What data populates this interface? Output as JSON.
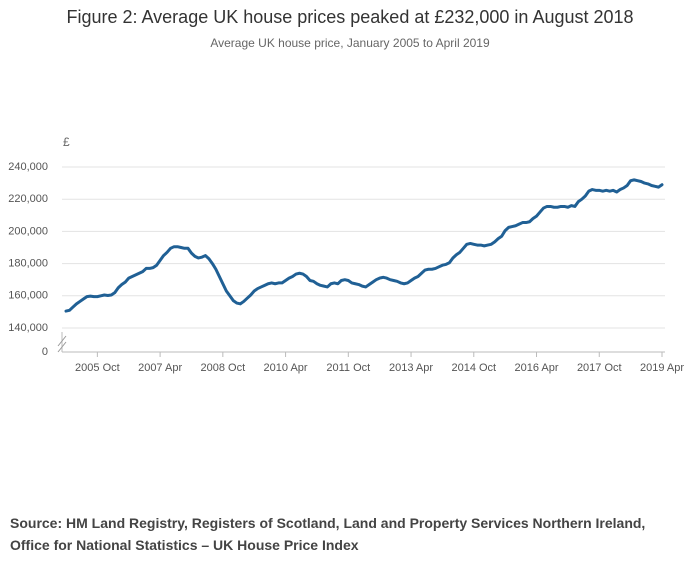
{
  "chart_data": {
    "type": "line",
    "title": "Figure 2: Average UK house prices peaked at £232,000 in August 2018",
    "subtitle": "Average UK house price, January 2005 to April 2019",
    "y_label": "£",
    "source": "Source: HM Land Registry, Registers of Scotland, Land and Property Services Northern Ireland, Office for National Statistics – UK House Price Index",
    "color": "#206095",
    "grid": true,
    "axis_break": true,
    "ylim": [
      140000,
      240000
    ],
    "yticks": [
      0,
      {
        "value": 140000,
        "label": "140,000"
      },
      {
        "value": 160000,
        "label": "160,000"
      },
      {
        "value": 180000,
        "label": "180,000"
      },
      {
        "value": 200000,
        "label": "200,000"
      },
      {
        "value": 220000,
        "label": "220,000"
      },
      {
        "value": 240000,
        "label": "240,000"
      }
    ],
    "xticks": [
      "2005 Oct",
      "2007 Apr",
      "2008 Oct",
      "2010 Apr",
      "2011 Oct",
      "2013 Apr",
      "2014 Oct",
      "2016 Apr",
      "2017 Oct",
      "2019 Apr"
    ],
    "x": [
      "2005 Jan",
      "2005 Feb",
      "2005 Mar",
      "2005 Apr",
      "2005 May",
      "2005 Jun",
      "2005 Jul",
      "2005 Aug",
      "2005 Sep",
      "2005 Oct",
      "2005 Nov",
      "2005 Dec",
      "2006 Jan",
      "2006 Feb",
      "2006 Mar",
      "2006 Apr",
      "2006 May",
      "2006 Jun",
      "2006 Jul",
      "2006 Aug",
      "2006 Sep",
      "2006 Oct",
      "2006 Nov",
      "2006 Dec",
      "2007 Jan",
      "2007 Feb",
      "2007 Mar",
      "2007 Apr",
      "2007 May",
      "2007 Jun",
      "2007 Jul",
      "2007 Aug",
      "2007 Sep",
      "2007 Oct",
      "2007 Nov",
      "2007 Dec",
      "2008 Jan",
      "2008 Feb",
      "2008 Mar",
      "2008 Apr",
      "2008 May",
      "2008 Jun",
      "2008 Jul",
      "2008 Aug",
      "2008 Sep",
      "2008 Oct",
      "2008 Nov",
      "2008 Dec",
      "2009 Jan",
      "2009 Feb",
      "2009 Mar",
      "2009 Apr",
      "2009 May",
      "2009 Jun",
      "2009 Jul",
      "2009 Aug",
      "2009 Sep",
      "2009 Oct",
      "2009 Nov",
      "2009 Dec",
      "2010 Jan",
      "2010 Feb",
      "2010 Mar",
      "2010 Apr",
      "2010 May",
      "2010 Jun",
      "2010 Jul",
      "2010 Aug",
      "2010 Sep",
      "2010 Oct",
      "2010 Nov",
      "2010 Dec",
      "2011 Jan",
      "2011 Feb",
      "2011 Mar",
      "2011 Apr",
      "2011 May",
      "2011 Jun",
      "2011 Jul",
      "2011 Aug",
      "2011 Sep",
      "2011 Oct",
      "2011 Nov",
      "2011 Dec",
      "2012 Jan",
      "2012 Feb",
      "2012 Mar",
      "2012 Apr",
      "2012 May",
      "2012 Jun",
      "2012 Jul",
      "2012 Aug",
      "2012 Sep",
      "2012 Oct",
      "2012 Nov",
      "2012 Dec",
      "2013 Jan",
      "2013 Feb",
      "2013 Mar",
      "2013 Apr",
      "2013 May",
      "2013 Jun",
      "2013 Jul",
      "2013 Aug",
      "2013 Sep",
      "2013 Oct",
      "2013 Nov",
      "2013 Dec",
      "2014 Jan",
      "2014 Feb",
      "2014 Mar",
      "2014 Apr",
      "2014 May",
      "2014 Jun",
      "2014 Jul",
      "2014 Aug",
      "2014 Sep",
      "2014 Oct",
      "2014 Nov",
      "2014 Dec",
      "2015 Jan",
      "2015 Feb",
      "2015 Mar",
      "2015 Apr",
      "2015 May",
      "2015 Jun",
      "2015 Jul",
      "2015 Aug",
      "2015 Sep",
      "2015 Oct",
      "2015 Nov",
      "2015 Dec",
      "2016 Jan",
      "2016 Feb",
      "2016 Mar",
      "2016 Apr",
      "2016 May",
      "2016 Jun",
      "2016 Jul",
      "2016 Aug",
      "2016 Sep",
      "2016 Oct",
      "2016 Nov",
      "2016 Dec",
      "2017 Jan",
      "2017 Feb",
      "2017 Mar",
      "2017 Apr",
      "2017 May",
      "2017 Jun",
      "2017 Jul",
      "2017 Aug",
      "2017 Sep",
      "2017 Oct",
      "2017 Nov",
      "2017 Dec",
      "2018 Jan",
      "2018 Feb",
      "2018 Mar",
      "2018 Apr",
      "2018 May",
      "2018 Jun",
      "2018 Jul",
      "2018 Aug",
      "2018 Sep",
      "2018 Oct",
      "2018 Nov",
      "2018 Dec",
      "2019 Jan",
      "2019 Feb",
      "2019 Mar",
      "2019 Apr"
    ],
    "values": [
      150500,
      151000,
      153000,
      155000,
      156500,
      158000,
      159500,
      159800,
      159500,
      159500,
      160000,
      160500,
      160200,
      160500,
      162000,
      165000,
      167000,
      168500,
      171000,
      172000,
      173000,
      174000,
      175000,
      177000,
      177000,
      177500,
      179000,
      182000,
      185000,
      187000,
      189500,
      190500,
      190500,
      190000,
      189500,
      189500,
      186500,
      184500,
      183500,
      184000,
      185000,
      183000,
      180000,
      176500,
      172000,
      167500,
      163000,
      160000,
      157000,
      155500,
      155000,
      156500,
      158500,
      160500,
      163000,
      164500,
      165500,
      166500,
      167500,
      168000,
      167500,
      168000,
      168000,
      169500,
      171000,
      172000,
      173500,
      174000,
      173500,
      172000,
      169500,
      169000,
      167500,
      166500,
      166000,
      165500,
      167500,
      168000,
      167500,
      169500,
      170000,
      169500,
      168000,
      167500,
      167000,
      166000,
      165500,
      167000,
      168500,
      170000,
      171000,
      171500,
      171000,
      170000,
      169500,
      169000,
      168000,
      167500,
      168000,
      169500,
      171000,
      172000,
      174000,
      176000,
      176500,
      176500,
      177000,
      178000,
      179000,
      179500,
      180500,
      183500,
      185500,
      187000,
      189500,
      192000,
      192500,
      192000,
      191500,
      191500,
      191000,
      191500,
      192000,
      193500,
      195500,
      197000,
      200500,
      202500,
      203000,
      203500,
      204500,
      205500,
      205500,
      206000,
      208000,
      209500,
      212000,
      214500,
      215500,
      215500,
      215000,
      215000,
      215500,
      215500,
      215000,
      216000,
      215500,
      218500,
      220000,
      222000,
      225000,
      226000,
      225500,
      225500,
      225000,
      225500,
      225000,
      225500,
      224500,
      226000,
      227000,
      228500,
      231500,
      232000,
      231500,
      231000,
      230000,
      229500,
      228500,
      228000,
      227500,
      229000
    ]
  }
}
